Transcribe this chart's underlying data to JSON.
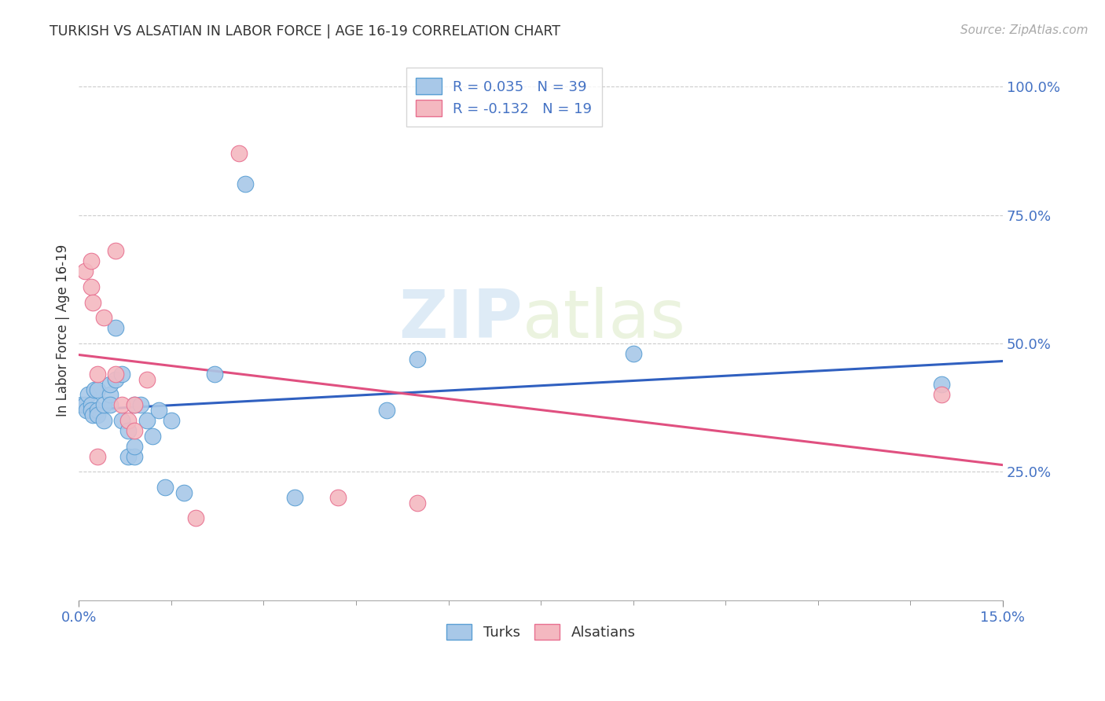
{
  "title": "TURKISH VS ALSATIAN IN LABOR FORCE | AGE 16-19 CORRELATION CHART",
  "source": "Source: ZipAtlas.com",
  "ylabel": "In Labor Force | Age 16-19",
  "watermark_zip": "ZIP",
  "watermark_atlas": "atlas",
  "legend_line1": "R = 0.035   N = 39",
  "legend_line2": "R = -0.132   N = 19",
  "turks_color": "#a8c8e8",
  "alsatians_color": "#f4b8c0",
  "turks_edge_color": "#5a9fd4",
  "alsatians_edge_color": "#e87090",
  "trend_turks_color": "#3060c0",
  "trend_alsatians_color": "#e05080",
  "xlim": [
    0.0,
    0.15
  ],
  "ylim": [
    0.0,
    1.05
  ],
  "turks_x": [
    0.0005,
    0.001,
    0.0012,
    0.0015,
    0.002,
    0.002,
    0.0022,
    0.0025,
    0.003,
    0.003,
    0.003,
    0.004,
    0.004,
    0.005,
    0.005,
    0.005,
    0.006,
    0.006,
    0.007,
    0.007,
    0.008,
    0.008,
    0.009,
    0.009,
    0.009,
    0.01,
    0.011,
    0.012,
    0.013,
    0.014,
    0.015,
    0.017,
    0.022,
    0.027,
    0.035,
    0.05,
    0.055,
    0.09,
    0.14
  ],
  "turks_y": [
    0.38,
    0.38,
    0.37,
    0.4,
    0.38,
    0.37,
    0.36,
    0.41,
    0.37,
    0.41,
    0.36,
    0.35,
    0.38,
    0.4,
    0.38,
    0.42,
    0.53,
    0.43,
    0.35,
    0.44,
    0.33,
    0.28,
    0.28,
    0.3,
    0.38,
    0.38,
    0.35,
    0.32,
    0.37,
    0.22,
    0.35,
    0.21,
    0.44,
    0.81,
    0.2,
    0.37,
    0.47,
    0.48,
    0.42
  ],
  "alsatians_x": [
    0.001,
    0.002,
    0.002,
    0.0022,
    0.003,
    0.003,
    0.004,
    0.006,
    0.006,
    0.007,
    0.008,
    0.009,
    0.009,
    0.011,
    0.019,
    0.026,
    0.042,
    0.055,
    0.14
  ],
  "alsatians_y": [
    0.64,
    0.66,
    0.61,
    0.58,
    0.44,
    0.28,
    0.55,
    0.68,
    0.44,
    0.38,
    0.35,
    0.33,
    0.38,
    0.43,
    0.16,
    0.87,
    0.2,
    0.19,
    0.4
  ]
}
